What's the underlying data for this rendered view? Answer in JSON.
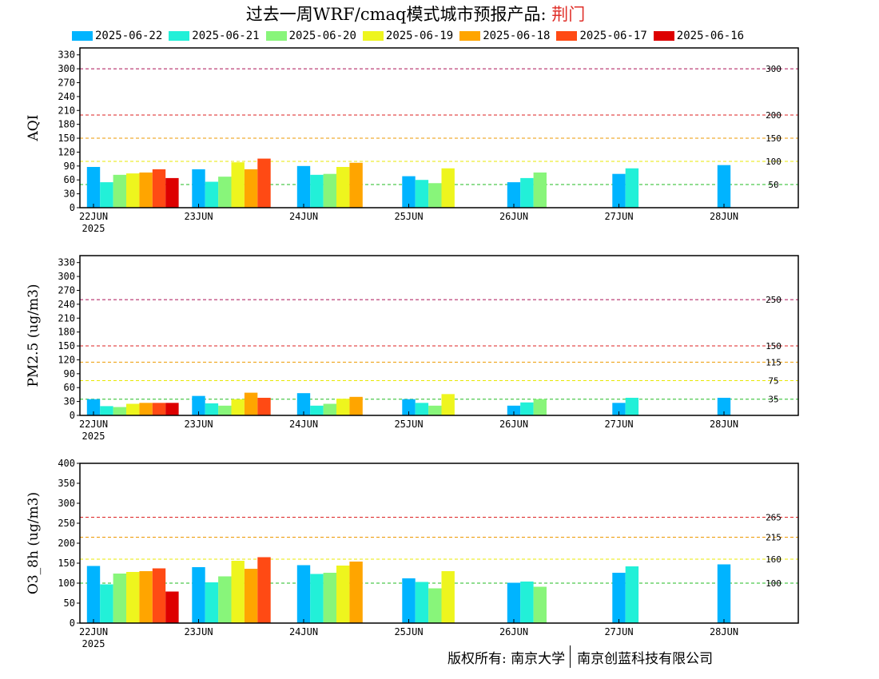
{
  "title": {
    "main": "过去一周WRF/cmaq模式城市预报产品: ",
    "city": "荆门"
  },
  "footer": {
    "left": "版权所有: 南京大学",
    "right": "南京创蓝科技有限公司"
  },
  "legend": [
    {
      "label": "2025-06-22",
      "color": "#00b4ff"
    },
    {
      "label": "2025-06-21",
      "color": "#22f0d8"
    },
    {
      "label": "2025-06-20",
      "color": "#88f57a"
    },
    {
      "label": "2025-06-19",
      "color": "#eef51e"
    },
    {
      "label": "2025-06-18",
      "color": "#ffa500"
    },
    {
      "label": "2025-06-17",
      "color": "#ff4a14"
    },
    {
      "label": "2025-06-16",
      "color": "#dd0000"
    }
  ],
  "chart_data": [
    {
      "type": "bar",
      "ylabel": "AQI",
      "ylim": [
        0,
        345
      ],
      "yticks": [
        0,
        30,
        60,
        90,
        120,
        150,
        180,
        210,
        240,
        270,
        300,
        330
      ],
      "categories": [
        "22JUN",
        "23JUN",
        "24JUN",
        "25JUN",
        "26JUN",
        "27JUN",
        "28JUN"
      ],
      "year_label": "2025",
      "thresholds": [
        {
          "value": 50,
          "label": "50",
          "color": "#22bb22"
        },
        {
          "value": 100,
          "label": "100",
          "color": "#e8e800"
        },
        {
          "value": 150,
          "label": "150",
          "color": "#ee9900"
        },
        {
          "value": 200,
          "label": "200",
          "color": "#dd2222"
        },
        {
          "value": 300,
          "label": "300",
          "color": "#aa1155"
        }
      ],
      "series": [
        {
          "name": "2025-06-22",
          "values": [
            88,
            83,
            90,
            68,
            55,
            73,
            92
          ]
        },
        {
          "name": "2025-06-21",
          "values": [
            55,
            56,
            71,
            60,
            64,
            85,
            null
          ]
        },
        {
          "name": "2025-06-20",
          "values": [
            71,
            67,
            73,
            53,
            76,
            null,
            null
          ]
        },
        {
          "name": "2025-06-19",
          "values": [
            74,
            98,
            88,
            85,
            null,
            null,
            null
          ]
        },
        {
          "name": "2025-06-18",
          "values": [
            76,
            83,
            97,
            null,
            null,
            null,
            null
          ]
        },
        {
          "name": "2025-06-17",
          "values": [
            83,
            106,
            null,
            null,
            null,
            null,
            null
          ]
        },
        {
          "name": "2025-06-16",
          "values": [
            64,
            null,
            null,
            null,
            null,
            null,
            null
          ]
        }
      ]
    },
    {
      "type": "bar",
      "ylabel": "PM2.5 (ug/m3)",
      "ylim": [
        0,
        345
      ],
      "yticks": [
        0,
        30,
        60,
        90,
        120,
        150,
        180,
        210,
        240,
        270,
        300,
        330
      ],
      "categories": [
        "22JUN",
        "23JUN",
        "24JUN",
        "25JUN",
        "26JUN",
        "27JUN",
        "28JUN"
      ],
      "year_label": "2025",
      "thresholds": [
        {
          "value": 35,
          "label": "35",
          "color": "#22bb22"
        },
        {
          "value": 75,
          "label": "75",
          "color": "#e8e800"
        },
        {
          "value": 115,
          "label": "115",
          "color": "#ee9900"
        },
        {
          "value": 150,
          "label": "150",
          "color": "#dd2222"
        },
        {
          "value": 250,
          "label": "250",
          "color": "#aa1155"
        }
      ],
      "series": [
        {
          "name": "2025-06-22",
          "values": [
            35,
            42,
            48,
            35,
            21,
            27,
            38
          ]
        },
        {
          "name": "2025-06-21",
          "values": [
            20,
            26,
            21,
            27,
            28,
            38,
            null
          ]
        },
        {
          "name": "2025-06-20",
          "values": [
            18,
            21,
            25,
            21,
            35,
            null,
            null
          ]
        },
        {
          "name": "2025-06-19",
          "values": [
            25,
            35,
            36,
            46,
            null,
            null,
            null
          ]
        },
        {
          "name": "2025-06-18",
          "values": [
            27,
            49,
            40,
            null,
            null,
            null,
            null
          ]
        },
        {
          "name": "2025-06-17",
          "values": [
            27,
            38,
            null,
            null,
            null,
            null,
            null
          ]
        },
        {
          "name": "2025-06-16",
          "values": [
            27,
            null,
            null,
            null,
            null,
            null,
            null
          ]
        }
      ]
    },
    {
      "type": "bar",
      "ylabel": "O3_8h (ug/m3)",
      "ylim": [
        0,
        400
      ],
      "yticks": [
        0,
        50,
        100,
        150,
        200,
        250,
        300,
        350,
        400
      ],
      "categories": [
        "22JUN",
        "23JUN",
        "24JUN",
        "25JUN",
        "26JUN",
        "27JUN",
        "28JUN"
      ],
      "year_label": "2025",
      "thresholds": [
        {
          "value": 100,
          "label": "100",
          "color": "#22bb22"
        },
        {
          "value": 160,
          "label": "160",
          "color": "#e8e800"
        },
        {
          "value": 215,
          "label": "215",
          "color": "#ee9900"
        },
        {
          "value": 265,
          "label": "265",
          "color": "#dd2222"
        }
      ],
      "series": [
        {
          "name": "2025-06-22",
          "values": [
            143,
            140,
            145,
            112,
            101,
            126,
            147
          ]
        },
        {
          "name": "2025-06-21",
          "values": [
            97,
            102,
            123,
            103,
            104,
            142,
            null
          ]
        },
        {
          "name": "2025-06-20",
          "values": [
            124,
            117,
            126,
            87,
            91,
            null,
            null
          ]
        },
        {
          "name": "2025-06-19",
          "values": [
            128,
            156,
            144,
            130,
            null,
            null,
            null
          ]
        },
        {
          "name": "2025-06-18",
          "values": [
            130,
            136,
            154,
            null,
            null,
            null,
            null
          ]
        },
        {
          "name": "2025-06-17",
          "values": [
            137,
            165,
            null,
            null,
            null,
            null,
            null
          ]
        },
        {
          "name": "2025-06-16",
          "values": [
            79,
            null,
            null,
            null,
            null,
            null,
            null
          ]
        }
      ]
    }
  ]
}
